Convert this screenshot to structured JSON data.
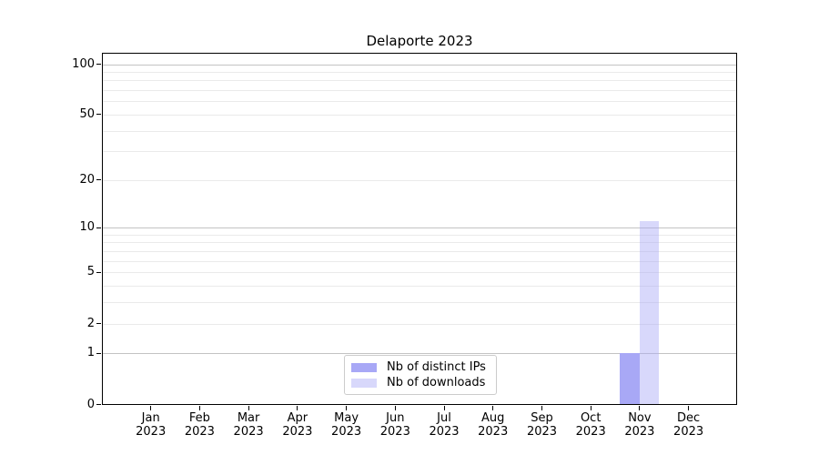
{
  "title": "Delaporte 2023",
  "chart_data": {
    "type": "bar",
    "title": "Delaporte 2023",
    "categories": [
      "Jan",
      "Feb",
      "Mar",
      "Apr",
      "May",
      "Jun",
      "Jul",
      "Aug",
      "Sep",
      "Oct",
      "Nov",
      "Dec"
    ],
    "year_label": "2023",
    "series": [
      {
        "name": "Nb of distinct IPs",
        "fill": "#a8a8f6",
        "values": [
          0,
          0,
          0,
          0,
          0,
          0,
          0,
          0,
          0,
          0,
          1,
          0
        ]
      },
      {
        "name": "Nb of downloads",
        "fill": "rgba(168,168,246,0.45)",
        "values": [
          0,
          0,
          0,
          0,
          0,
          0,
          0,
          0,
          0,
          0,
          11,
          0
        ]
      }
    ],
    "y_scale": "log1p",
    "y_ticks": [
      0,
      1,
      2,
      5,
      10,
      20,
      50,
      100
    ],
    "ylim": [
      0,
      117
    ],
    "grid": {
      "major_values": [
        1,
        10,
        100
      ],
      "minor_values": [
        2,
        3,
        4,
        5,
        6,
        7,
        8,
        9,
        20,
        30,
        40,
        50,
        60,
        70,
        80,
        90
      ],
      "major_color": "#c3c3c3",
      "minor_color": "#eaeaea"
    },
    "legend": {
      "position": "lower center",
      "entries": [
        "Nb of distinct IPs",
        "Nb of downloads"
      ]
    }
  }
}
